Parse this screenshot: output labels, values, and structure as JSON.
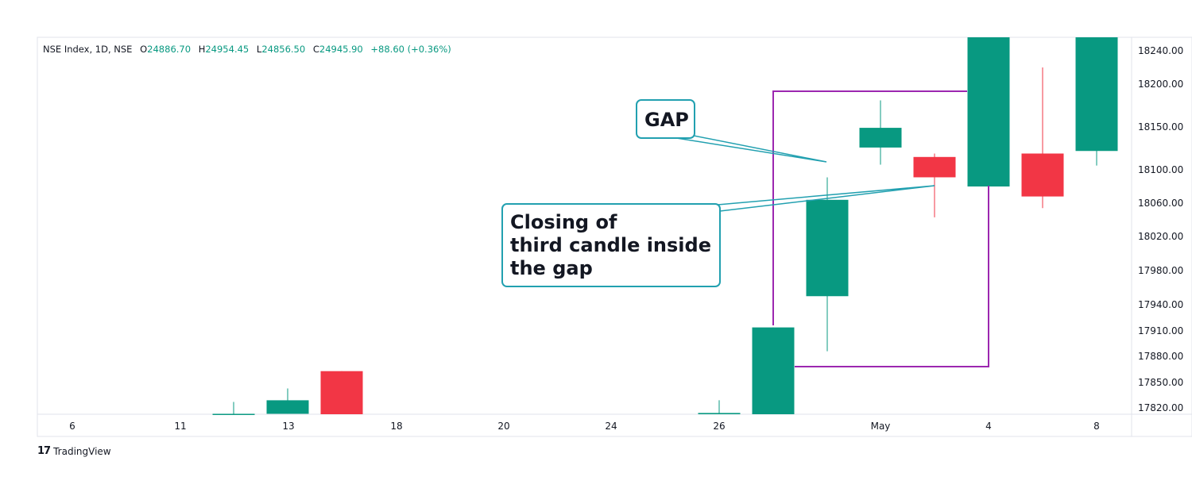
{
  "legend": {
    "symbol": "NSE Index, 1D, NSE",
    "open_key": "O",
    "open": "24886.70",
    "high_key": "H",
    "high": "24954.45",
    "low_key": "L",
    "low": "24856.50",
    "close_key": "C",
    "close": "24945.90",
    "change": "+88.60 (+0.36%)"
  },
  "brand": {
    "logo": "17",
    "name": "TradingView"
  },
  "colors": {
    "up": "#089981",
    "down": "#f23645",
    "box": "#9c27b0",
    "callout": "#22a0b0"
  },
  "chart_data": {
    "type": "candlestick",
    "x_ticks": [
      "6",
      "11",
      "13",
      "18",
      "20",
      "24",
      "26",
      "May",
      "4",
      "8"
    ],
    "y_ticks": [
      "18240.00",
      "18200.00",
      "18150.00",
      "18100.00",
      "18060.00",
      "18020.00",
      "17980.00",
      "17940.00",
      "17910.00",
      "17880.00",
      "17850.00",
      "17820.00"
    ],
    "y_tick_values": [
      18240,
      18200,
      18150,
      18100,
      18060,
      18020,
      17980,
      17940,
      17910,
      17880,
      17850,
      17820
    ],
    "candles": [
      {
        "open": 17812,
        "close": 17813,
        "high": 17827,
        "low": 17812
      },
      {
        "open": 17813,
        "close": 17829,
        "high": 17843,
        "low": 17813
      },
      {
        "open": 17863,
        "close": 17812,
        "high": 17863,
        "low": 17812
      },
      {
        "open": 17812,
        "close": 17814,
        "high": 17829,
        "low": 17812
      },
      {
        "open": 17812,
        "close": 17914,
        "high": 17914,
        "low": 17812
      },
      {
        "open": 17950,
        "close": 18064,
        "high": 18091,
        "low": 17886
      },
      {
        "open": 18126,
        "close": 18149,
        "high": 18181,
        "low": 18106
      },
      {
        "open": 18115,
        "close": 18091,
        "high": 18119,
        "low": 18043
      },
      {
        "open": 18080,
        "close": 18280,
        "high": 18280,
        "low": 18080
      },
      {
        "open": 18119,
        "close": 18068,
        "high": 18220,
        "low": 18054
      },
      {
        "open": 18122,
        "close": 18280,
        "high": 18280,
        "low": 18105
      }
    ],
    "annotations": {
      "gap_label": "GAP",
      "closing_label": [
        "Closing of",
        "third candle inside",
        "the gap"
      ]
    }
  }
}
